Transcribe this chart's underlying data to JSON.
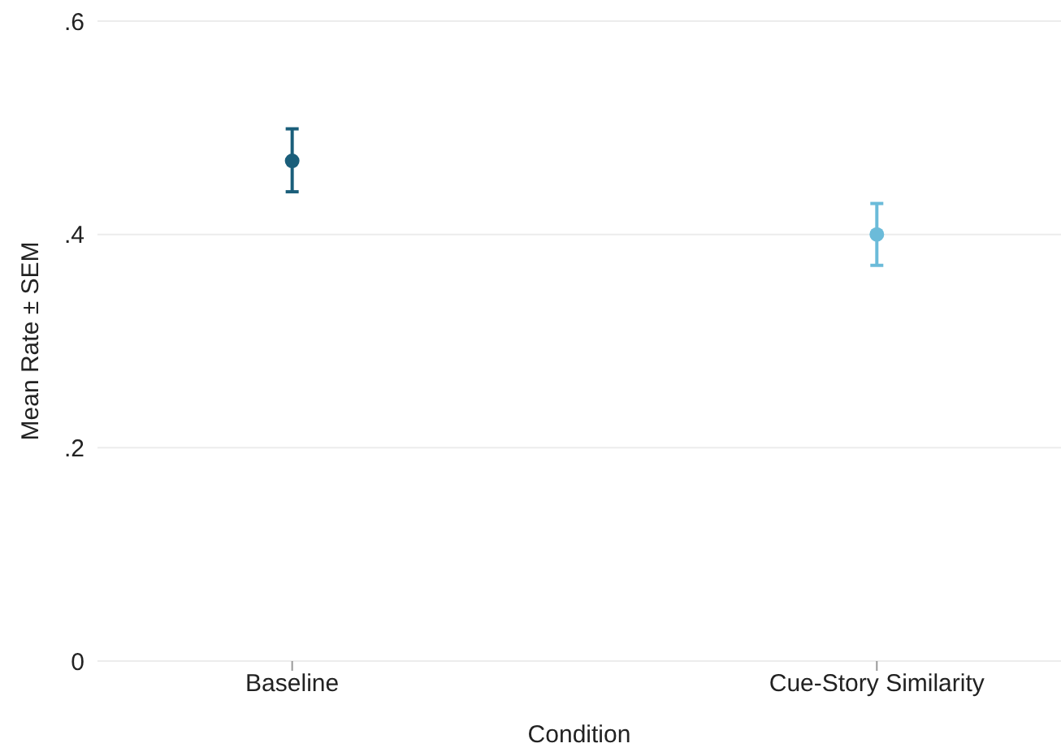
{
  "chart_data": {
    "type": "scatter",
    "xlabel": "Condition",
    "ylabel": "Mean Rate ± SEM",
    "categories": [
      "Baseline",
      "Cue-Story Similarity"
    ],
    "values": [
      0.469,
      0.4
    ],
    "colors": [
      "#1a5e7a",
      "#6bbbd9"
    ],
    "errors": [
      [
        0.44,
        0.499
      ],
      [
        0.371,
        0.429
      ]
    ],
    "ylim": [
      0,
      0.6
    ],
    "yticks": [
      {
        "value": 0,
        "label": "0"
      },
      {
        "value": 0.2,
        "label": ".2"
      },
      {
        "value": 0.4,
        "label": ".4"
      },
      {
        "value": 0.6,
        "label": ".6"
      }
    ],
    "grid": "y",
    "marker": "circle"
  }
}
